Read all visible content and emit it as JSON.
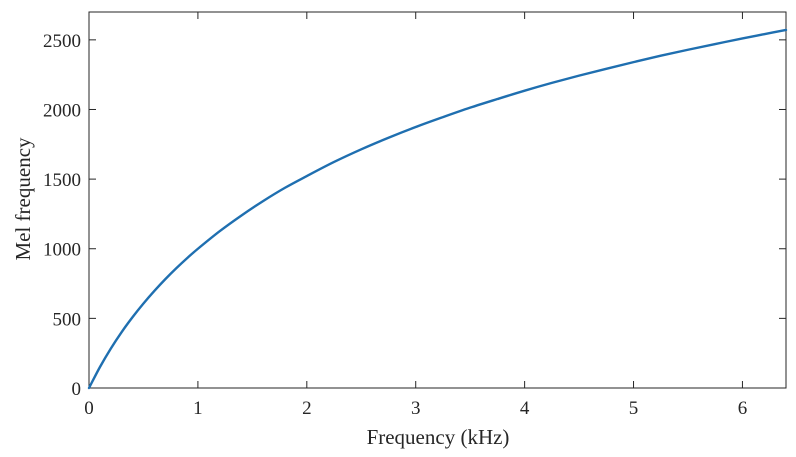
{
  "chart_data": {
    "type": "line",
    "title": "",
    "xlabel": "Frequency (kHz)",
    "ylabel": "Mel frequency",
    "xlim": [
      0,
      6.4
    ],
    "ylim": [
      0,
      2700
    ],
    "xticks": [
      0,
      1,
      2,
      3,
      4,
      5,
      6
    ],
    "yticks": [
      0,
      500,
      1000,
      1500,
      2000,
      2500
    ],
    "xtick_labels": [
      "0",
      "1",
      "2",
      "3",
      "4",
      "5",
      "6"
    ],
    "ytick_labels": [
      "0",
      "500",
      "1000",
      "1500",
      "2000",
      "2500"
    ],
    "grid": false,
    "line_color": "#1f6fb0",
    "axis_color": "#262626",
    "series": [
      {
        "x": [
          0,
          0.1,
          0.2,
          0.3,
          0.4,
          0.5,
          0.6,
          0.7,
          0.8,
          0.9,
          1.0,
          1.2,
          1.4,
          1.6,
          1.8,
          2.0,
          2.25,
          2.5,
          2.75,
          3.0,
          3.25,
          3.5,
          3.75,
          4.0,
          4.25,
          4.5,
          4.75,
          5.0,
          5.25,
          5.5,
          5.75,
          6.0,
          6.2,
          6.4
        ],
        "values": [
          0,
          150,
          283,
          402,
          509,
          607,
          697,
          781,
          859,
          932,
          1000,
          1126,
          1239,
          1343,
          1438,
          1522,
          1623,
          1714,
          1797,
          1874,
          1945,
          2013,
          2075,
          2135,
          2191,
          2243,
          2292,
          2340,
          2386,
          2429,
          2470,
          2510,
          2541,
          2571
        ]
      }
    ]
  }
}
